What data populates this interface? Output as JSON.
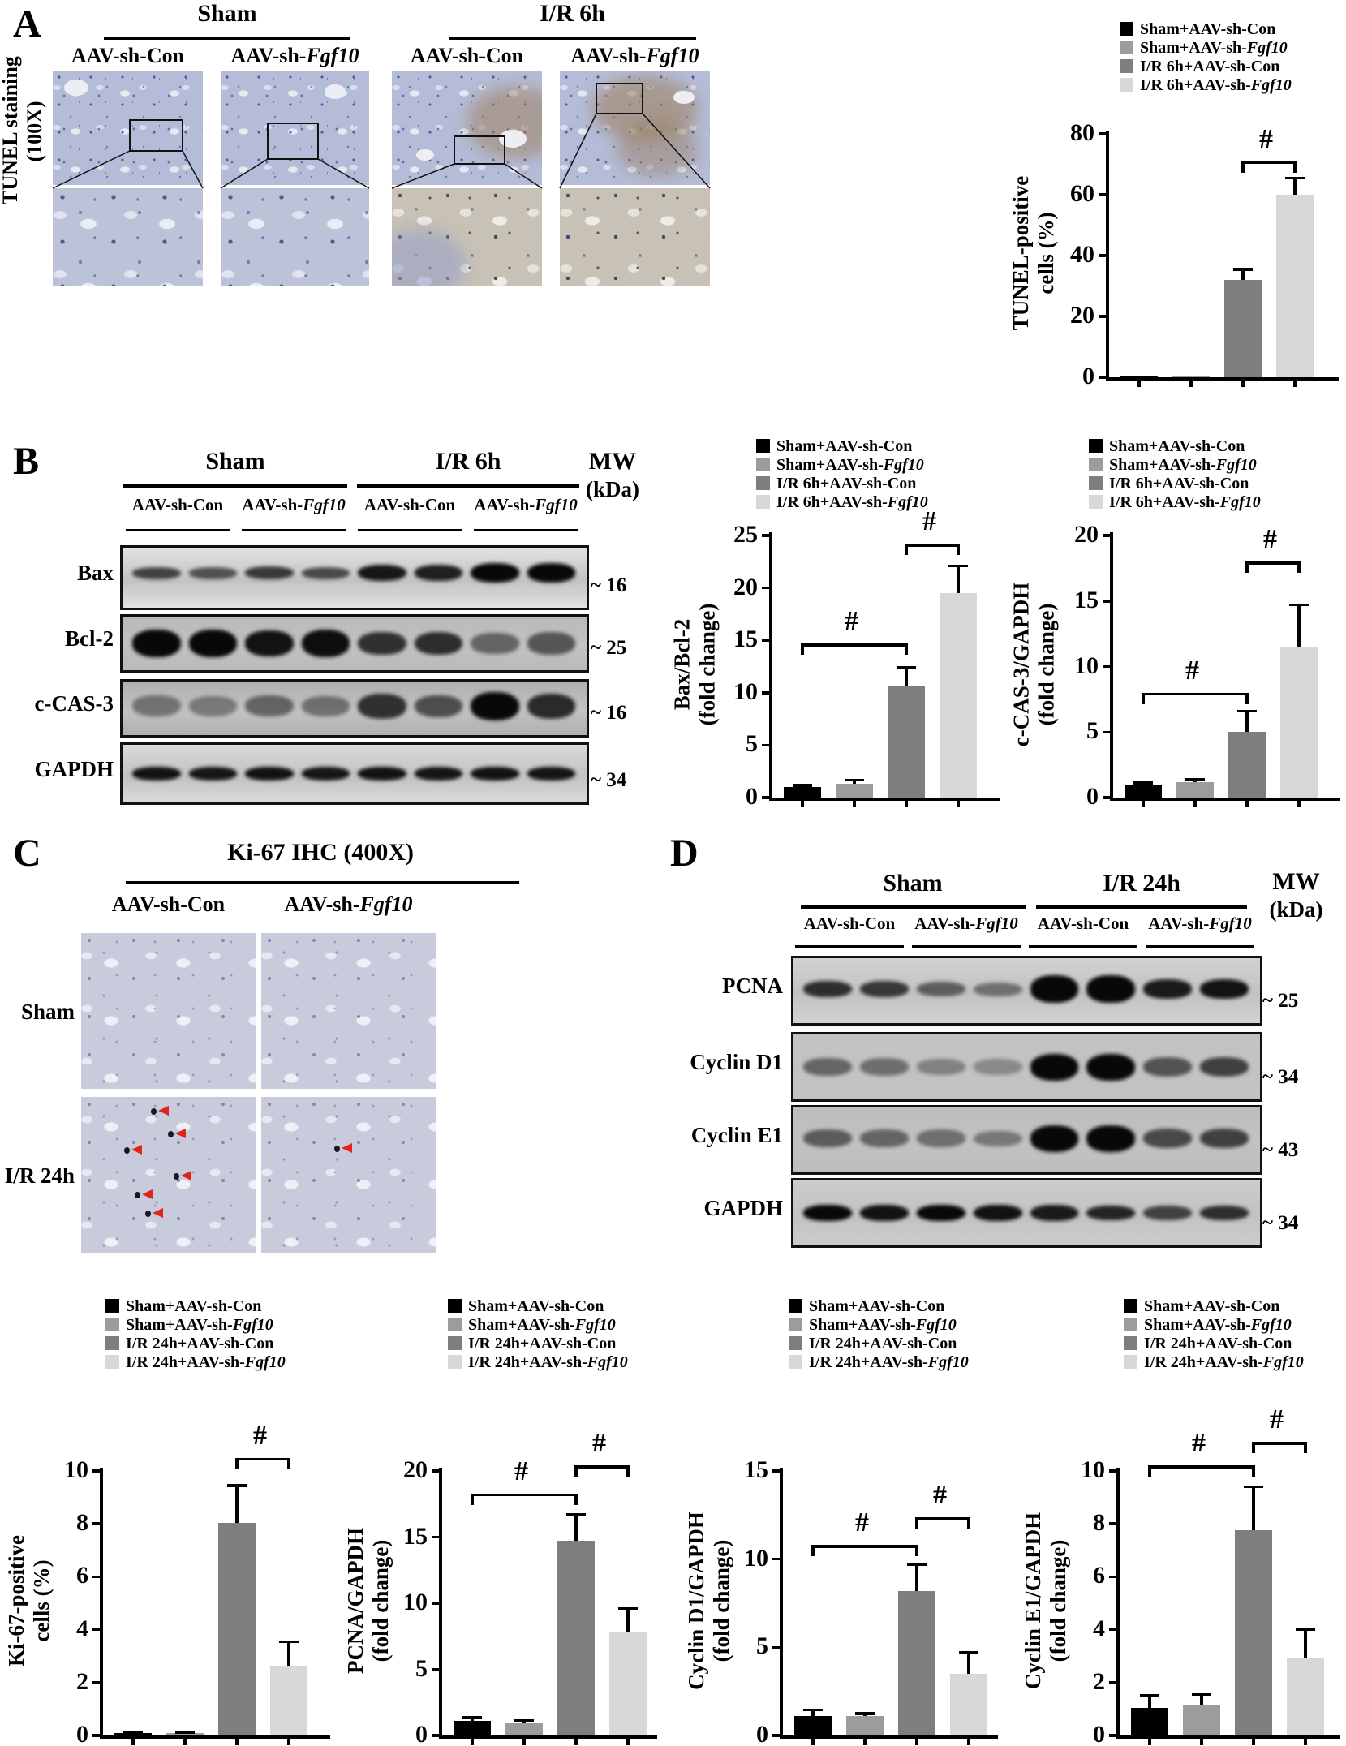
{
  "figure_colors": {
    "series_colors": [
      "#000000",
      "#9c9c9c",
      "#7e7e7e",
      "#d8d8d8"
    ],
    "arrow_color": "#e32219"
  },
  "legends": {
    "ir6h": [
      "Sham+AAV-sh-Con",
      "Sham+AAV-sh-Fgf10",
      "I/R 6h+AAV-sh-Con",
      "I/R 6h+AAV-sh-Fgf10"
    ],
    "ir24h": [
      "Sham+AAV-sh-Con",
      "Sham+AAV-sh-Fgf10",
      "I/R 24h+AAV-sh-Con",
      "I/R 24h+AAV-sh-Fgf10"
    ]
  },
  "chart_data": [
    {
      "type": "bar",
      "ylabel_lines": [
        "TUNEL-positive",
        "cells (%)"
      ],
      "categories": [
        "Sham+AAV-sh-Con",
        "Sham+AAV-sh-Fgf10",
        "I/R 6h+AAV-sh-Con",
        "I/R 6h+AAV-sh-Fgf10"
      ],
      "values": [
        0.5,
        0.5,
        32,
        60
      ],
      "errors": [
        0,
        0,
        3.5,
        5.5
      ],
      "ylim": [
        0,
        80
      ],
      "yticks": [
        0,
        20,
        40,
        60,
        80
      ],
      "sig": [
        {
          "a": 2,
          "b": 3,
          "y": 71,
          "sym": "#"
        }
      ],
      "legend_position": "top-right"
    },
    {
      "type": "bar",
      "ylabel_lines": [
        "Bax/Bcl-2",
        "(fold change)"
      ],
      "categories": [
        "Sham+AAV-sh-Con",
        "Sham+AAV-sh-Fgf10",
        "I/R 6h+AAV-sh-Con",
        "I/R 6h+AAV-sh-Fgf10"
      ],
      "values": [
        1.0,
        1.3,
        10.7,
        19.5
      ],
      "errors": [
        0.15,
        0.35,
        1.7,
        2.6
      ],
      "ylim": [
        0,
        25
      ],
      "yticks": [
        0,
        5,
        10,
        15,
        20,
        25
      ],
      "sig": [
        {
          "a": 0,
          "b": 2,
          "y": 14.7,
          "sym": "#"
        },
        {
          "a": 2,
          "b": 3,
          "y": 24.2,
          "sym": "#"
        }
      ],
      "legend_position": "top"
    },
    {
      "type": "bar",
      "ylabel_lines": [
        "c-CAS-3/GAPDH",
        "(fold change)"
      ],
      "categories": [
        "Sham+AAV-sh-Con",
        "Sham+AAV-sh-Fgf10",
        "I/R 6h+AAV-sh-Con",
        "I/R 6h+AAV-sh-Fgf10"
      ],
      "values": [
        1.0,
        1.2,
        5.0,
        11.5
      ],
      "errors": [
        0.1,
        0.15,
        1.6,
        3.2
      ],
      "ylim": [
        0,
        20
      ],
      "yticks": [
        0,
        5,
        10,
        15,
        20
      ],
      "sig": [
        {
          "a": 0,
          "b": 2,
          "y": 8.0,
          "sym": "#"
        },
        {
          "a": 2,
          "b": 3,
          "y": 18.0,
          "sym": "#"
        }
      ],
      "legend_position": "top"
    },
    {
      "type": "bar",
      "ylabel_lines": [
        "Ki-67-positive",
        "cells (%)"
      ],
      "categories": [
        "Sham+AAV-sh-Con",
        "Sham+AAV-sh-Fgf10",
        "I/R 24h+AAV-sh-Con",
        "I/R 24h+AAV-sh-Fgf10"
      ],
      "values": [
        0.08,
        0.08,
        8.05,
        2.6
      ],
      "errors": [
        0.03,
        0.03,
        1.4,
        0.95
      ],
      "ylim": [
        0,
        10
      ],
      "yticks": [
        0,
        2,
        4,
        6,
        8,
        10
      ],
      "sig": [
        {
          "a": 2,
          "b": 3,
          "y": 10.5,
          "sym": "#"
        }
      ],
      "legend_position": "top"
    },
    {
      "type": "bar",
      "ylabel_lines": [
        "PCNA/GAPDH",
        "(fold change)"
      ],
      "categories": [
        "Sham+AAV-sh-Con",
        "Sham+AAV-sh-Fgf10",
        "I/R 24h+AAV-sh-Con",
        "I/R 24h+AAV-sh-Fgf10"
      ],
      "values": [
        1.1,
        0.9,
        14.7,
        7.8
      ],
      "errors": [
        0.25,
        0.2,
        2.0,
        1.8
      ],
      "ylim": [
        0,
        20
      ],
      "yticks": [
        0,
        5,
        10,
        15,
        20
      ],
      "sig": [
        {
          "a": 0,
          "b": 2,
          "y": 18.3,
          "sym": "#"
        },
        {
          "a": 2,
          "b": 3,
          "y": 20.4,
          "sym": "#"
        }
      ],
      "legend_position": "top"
    },
    {
      "type": "bar",
      "ylabel_lines": [
        "Cyclin D1/GAPDH",
        "(fold change)"
      ],
      "categories": [
        "Sham+AAV-sh-Con",
        "Sham+AAV-sh-Fgf10",
        "I/R 24h+AAV-sh-Con",
        "I/R 24h+AAV-sh-Fgf10"
      ],
      "values": [
        1.1,
        1.1,
        8.2,
        3.5
      ],
      "errors": [
        0.35,
        0.15,
        1.5,
        1.2
      ],
      "ylim": [
        0,
        15
      ],
      "yticks": [
        0,
        5,
        10,
        15
      ],
      "sig": [
        {
          "a": 0,
          "b": 2,
          "y": 10.8,
          "sym": "#"
        },
        {
          "a": 2,
          "b": 3,
          "y": 12.4,
          "sym": "#"
        }
      ],
      "legend_position": "top"
    },
    {
      "type": "bar",
      "ylabel_lines": [
        "Cyclin E1/GAPDH",
        "(fold change)"
      ],
      "categories": [
        "Sham+AAV-sh-Con",
        "Sham+AAV-sh-Fgf10",
        "I/R 24h+AAV-sh-Con",
        "I/R 24h+AAV-sh-Fgf10"
      ],
      "values": [
        1.05,
        1.15,
        7.75,
        2.9
      ],
      "errors": [
        0.45,
        0.4,
        1.65,
        1.1
      ],
      "ylim": [
        0,
        10
      ],
      "yticks": [
        0,
        2,
        4,
        6,
        8,
        10
      ],
      "sig": [
        {
          "a": 0,
          "b": 2,
          "y": 10.2,
          "sym": "#"
        },
        {
          "a": 2,
          "b": 3,
          "y": 11.1,
          "sym": "#"
        }
      ],
      "legend_position": "top"
    }
  ],
  "panelA": {
    "letter": "A",
    "groups": [
      "Sham",
      "I/R 6h"
    ],
    "col_labels": [
      "AAV-sh-Con",
      "AAV-sh-Fgf10",
      "AAV-sh-Con",
      "AAV-sh-Fgf10"
    ],
    "row_label_lines": [
      "TUNEL staining",
      "(100X)"
    ]
  },
  "panelB": {
    "letter": "B",
    "groups": [
      "Sham",
      "I/R 6h"
    ],
    "col_labels": [
      "AAV-sh-Con",
      "AAV-sh-Fgf10",
      "AAV-sh-Con",
      "AAV-sh-Fgf10"
    ],
    "mw_lines": [
      "MW",
      "(kDa)"
    ],
    "blots": [
      {
        "label": "Bax",
        "mw": "~ 16",
        "bands": [
          [
            0.7,
            1
          ],
          [
            0.62,
            1
          ],
          [
            0.75,
            1.05
          ],
          [
            0.66,
            1
          ],
          [
            0.92,
            1.35
          ],
          [
            0.88,
            1.3
          ],
          [
            1,
            1.6
          ],
          [
            1,
            1.55
          ]
        ]
      },
      {
        "label": "Bcl-2",
        "mw": "~ 25",
        "bands": [
          [
            1,
            1
          ],
          [
            1,
            1
          ],
          [
            0.95,
            0.95
          ],
          [
            0.97,
            1
          ],
          [
            0.78,
            0.85
          ],
          [
            0.8,
            0.85
          ],
          [
            0.5,
            0.75
          ],
          [
            0.58,
            0.8
          ]
        ]
      },
      {
        "label": "c-CAS-3",
        "mw": "~ 16",
        "bands": [
          [
            0.42,
            1
          ],
          [
            0.38,
            0.95
          ],
          [
            0.5,
            1
          ],
          [
            0.44,
            0.95
          ],
          [
            0.78,
            1.2
          ],
          [
            0.62,
            1.05
          ],
          [
            1,
            1.35
          ],
          [
            0.82,
            1.2
          ]
        ]
      },
      {
        "label": "GAPDH",
        "mw": "~ 34",
        "bands": [
          [
            0.95,
            1
          ],
          [
            0.92,
            1
          ],
          [
            0.95,
            1
          ],
          [
            0.92,
            1
          ],
          [
            0.95,
            1
          ],
          [
            0.93,
            1
          ],
          [
            0.95,
            1
          ],
          [
            0.94,
            1
          ]
        ]
      }
    ]
  },
  "panelC": {
    "letter": "C",
    "title": "Ki-67 IHC (400X)",
    "col_labels": [
      "AAV-sh-Con",
      "AAV-sh-Fgf10"
    ],
    "row_labels": [
      "Sham",
      "I/R 24h"
    ],
    "arrows": {
      "con": [
        [
          0.44,
          0.06
        ],
        [
          0.54,
          0.21
        ],
        [
          0.29,
          0.31
        ],
        [
          0.57,
          0.48
        ],
        [
          0.35,
          0.6
        ],
        [
          0.41,
          0.72
        ]
      ],
      "fgf10": [
        [
          0.46,
          0.3
        ]
      ]
    }
  },
  "panelD": {
    "letter": "D",
    "groups": [
      "Sham",
      "I/R 24h"
    ],
    "col_labels": [
      "AAV-sh-Con",
      "AAV-sh-Fgf10",
      "AAV-sh-Con",
      "AAV-sh-Fgf10"
    ],
    "mw_lines": [
      "MW",
      "(kDa)"
    ],
    "blots": [
      {
        "label": "PCNA",
        "mw": "~ 25",
        "bands": [
          [
            0.8,
            1
          ],
          [
            0.75,
            1
          ],
          [
            0.55,
            0.9
          ],
          [
            0.45,
            0.85
          ],
          [
            1,
            1.7
          ],
          [
            1,
            1.7
          ],
          [
            0.9,
            1.2
          ],
          [
            0.95,
            1.2
          ]
        ]
      },
      {
        "label": "Cyclin D1",
        "mw": "~ 34",
        "bands": [
          [
            0.5,
            1
          ],
          [
            0.45,
            1
          ],
          [
            0.35,
            0.9
          ],
          [
            0.3,
            0.9
          ],
          [
            1,
            1.5
          ],
          [
            1,
            1.5
          ],
          [
            0.6,
            1.1
          ],
          [
            0.7,
            1.1
          ]
        ]
      },
      {
        "label": "Cyclin E1",
        "mw": "~ 43",
        "bands": [
          [
            0.55,
            1
          ],
          [
            0.5,
            1
          ],
          [
            0.45,
            1
          ],
          [
            0.4,
            0.9
          ],
          [
            1,
            1.5
          ],
          [
            1,
            1.5
          ],
          [
            0.65,
            1.1
          ],
          [
            0.7,
            1.1
          ]
        ]
      },
      {
        "label": "GAPDH",
        "mw": "~ 34",
        "bands": [
          [
            1,
            1
          ],
          [
            0.95,
            1
          ],
          [
            1,
            1
          ],
          [
            0.95,
            1
          ],
          [
            0.9,
            1
          ],
          [
            0.85,
            0.9
          ],
          [
            0.7,
            0.9
          ],
          [
            0.8,
            0.9
          ]
        ]
      }
    ]
  }
}
